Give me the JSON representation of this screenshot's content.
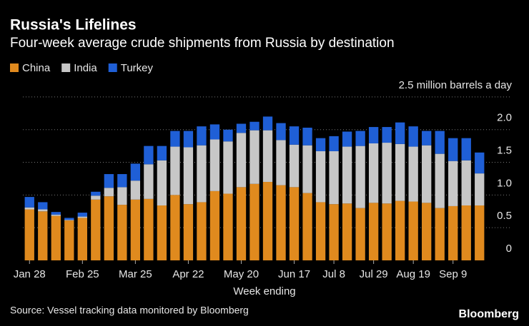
{
  "chart_data": {
    "type": "stacked-bar",
    "title": "Russia's Lifelines",
    "subtitle": "Four-week average crude shipments from Russia by destination",
    "x_label": "Week ending",
    "source": "Source: Vessel tracking data monitored by Bloomberg",
    "brand": "Bloomberg",
    "categories": [
      "Jan 28",
      null,
      null,
      null,
      "Feb 25",
      null,
      null,
      null,
      "Mar 25",
      null,
      null,
      null,
      "Apr 22",
      null,
      null,
      null,
      "May 20",
      null,
      null,
      null,
      "Jun 17",
      null,
      null,
      "Jul 8",
      null,
      null,
      "Jul 29",
      null,
      null,
      "Aug 19",
      null,
      null,
      "Sep 9",
      null,
      null
    ],
    "series": [
      {
        "name": "China",
        "color": "#e08a1e",
        "values": [
          0.78,
          0.75,
          0.68,
          0.61,
          0.65,
          0.93,
          0.98,
          0.85,
          0.93,
          0.94,
          0.84,
          1.0,
          0.86,
          0.89,
          1.06,
          1.02,
          1.12,
          1.17,
          1.2,
          1.15,
          1.12,
          1.03,
          0.89,
          0.86,
          0.87,
          0.8,
          0.88,
          0.87,
          0.91,
          0.9,
          0.88,
          0.8,
          0.83,
          0.84,
          0.84
        ]
      },
      {
        "name": "India",
        "color": "#c7c7c7",
        "values": [
          0.03,
          0.03,
          0.02,
          0.01,
          0.02,
          0.06,
          0.13,
          0.27,
          0.29,
          0.53,
          0.69,
          0.74,
          0.87,
          0.87,
          0.79,
          0.8,
          0.83,
          0.82,
          0.79,
          0.69,
          0.65,
          0.73,
          0.78,
          0.81,
          0.87,
          0.95,
          0.91,
          0.93,
          0.87,
          0.84,
          0.88,
          0.83,
          0.69,
          0.69,
          0.49
        ]
      },
      {
        "name": "Turkey",
        "color": "#1f5fd6",
        "values": [
          0.16,
          0.11,
          0.04,
          0.03,
          0.06,
          0.06,
          0.21,
          0.2,
          0.26,
          0.28,
          0.22,
          0.24,
          0.25,
          0.29,
          0.23,
          0.18,
          0.14,
          0.13,
          0.21,
          0.26,
          0.28,
          0.27,
          0.2,
          0.23,
          0.23,
          0.23,
          0.25,
          0.24,
          0.33,
          0.31,
          0.22,
          0.35,
          0.35,
          0.34,
          0.32
        ]
      }
    ],
    "ylim": [
      0,
      2.75
    ],
    "yticks": [
      0,
      0.5,
      {
        "value": 1,
        "label": "1.0"
      },
      1.5,
      {
        "value": 2,
        "label": "2.0"
      },
      {
        "value": 2.5,
        "label": "2.5 million barrels a day"
      }
    ],
    "grid": true
  }
}
